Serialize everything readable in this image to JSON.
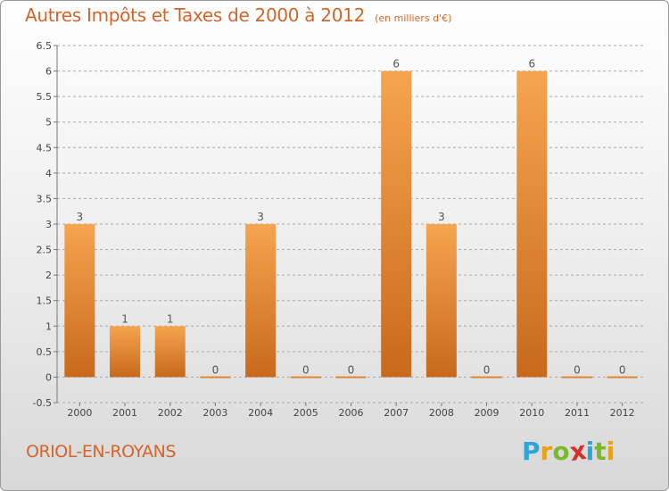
{
  "header": {
    "title": "Autres Impôts et Taxes de 2000 à 2012",
    "unit": "(en milliers d'€)"
  },
  "footer": {
    "commune": "ORIOL-EN-ROYANS",
    "logo": {
      "letters": [
        "P",
        "r",
        "o",
        "x",
        "i",
        "t",
        "i"
      ],
      "colors": [
        "#2aa6d9",
        "#e8a21a",
        "#7bb82c",
        "#d4302a",
        "#2aa6d9",
        "#7bb82c",
        "#e8a21a"
      ]
    }
  },
  "colors": {
    "bar_light": "#f6a44e",
    "bar_dark": "#c8691c",
    "title": "#d4652a",
    "gridline": "#a8a8a8"
  },
  "chart_data": {
    "type": "bar",
    "title": "Autres Impôts et Taxes de 2000 à 2012",
    "subtitle": "(en milliers d'€)",
    "categories": [
      "2000",
      "2001",
      "2002",
      "2003",
      "2004",
      "2005",
      "2006",
      "2007",
      "2008",
      "2009",
      "2010",
      "2011",
      "2012"
    ],
    "values": [
      3,
      1,
      1,
      0,
      3,
      0,
      0,
      6,
      3,
      0,
      6,
      0,
      0
    ],
    "data_labels": [
      "3",
      "1",
      "1",
      "0",
      "3",
      "0",
      "0",
      "6",
      "3",
      "0",
      "6",
      "0",
      "0"
    ],
    "ylim": [
      -0.5,
      6.5
    ],
    "yticks": [
      "-0.5",
      "0",
      "0.5",
      "1",
      "1.5",
      "2",
      "2.5",
      "3",
      "3.5",
      "4",
      "4.5",
      "5",
      "5.5",
      "6",
      "6.5"
    ],
    "grid": "dashed horizontal",
    "xlabel": "",
    "ylabel": ""
  }
}
